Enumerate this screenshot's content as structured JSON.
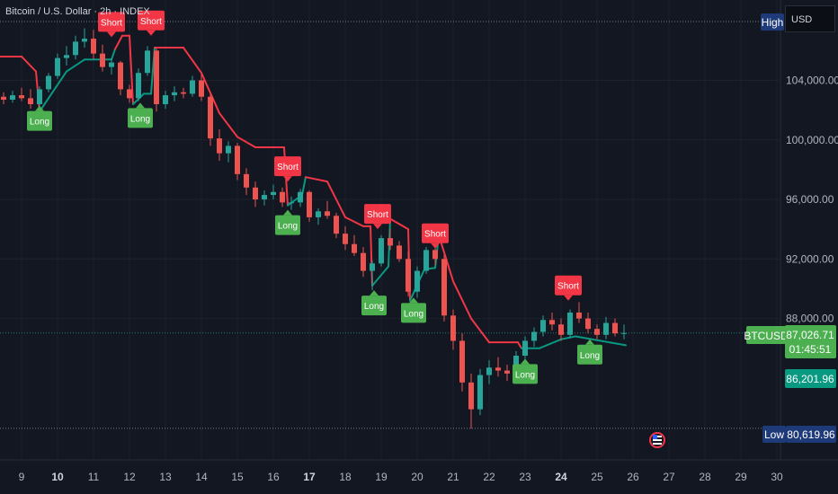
{
  "header": {
    "title": "Bitcoin / U.S. Dollar · 2h · INDEX",
    "currency": "USD"
  },
  "colors": {
    "bg": "#131722",
    "up": "#26a69a",
    "down": "#ef5350",
    "short": "#f23645",
    "long": "#4caf50",
    "stop_bear": "#f23645",
    "stop_bull": "#089981",
    "text": "#b2b5be"
  },
  "chart_data": {
    "type": "candlestick",
    "instrument": "BTCUSD",
    "y_axis": {
      "ticks": [
        "104,000.00",
        "100,000.00",
        "96,000.00",
        "92,000.00",
        "88,000.00"
      ],
      "tick_values": [
        104000,
        100000,
        96000,
        92000,
        88000
      ],
      "ylim": [
        78500,
        109400
      ]
    },
    "x_axis": {
      "ticks": [
        {
          "label": "9",
          "day": 9,
          "bold": false
        },
        {
          "label": "10",
          "day": 10,
          "bold": true
        },
        {
          "label": "11",
          "day": 11,
          "bold": false
        },
        {
          "label": "12",
          "day": 12,
          "bold": false
        },
        {
          "label": "13",
          "day": 13,
          "bold": false
        },
        {
          "label": "14",
          "day": 14,
          "bold": false
        },
        {
          "label": "15",
          "day": 15,
          "bold": false
        },
        {
          "label": "16",
          "day": 16,
          "bold": false
        },
        {
          "label": "17",
          "day": 17,
          "bold": true
        },
        {
          "label": "18",
          "day": 18,
          "bold": false
        },
        {
          "label": "19",
          "day": 19,
          "bold": false
        },
        {
          "label": "20",
          "day": 20,
          "bold": false
        },
        {
          "label": "21",
          "day": 21,
          "bold": false
        },
        {
          "label": "22",
          "day": 22,
          "bold": false
        },
        {
          "label": "23",
          "day": 23,
          "bold": false
        },
        {
          "label": "24",
          "day": 24,
          "bold": true
        },
        {
          "label": "25",
          "day": 25,
          "bold": false
        },
        {
          "label": "26",
          "day": 26,
          "bold": false
        },
        {
          "label": "27",
          "day": 27,
          "bold": false
        },
        {
          "label": "28",
          "day": 28,
          "bold": false
        },
        {
          "label": "29",
          "day": 29,
          "bold": false
        },
        {
          "label": "30",
          "day": 30,
          "bold": false
        }
      ],
      "xlim": [
        8.4,
        30.1
      ]
    },
    "high_line": {
      "label": "High"
    },
    "low_line": {
      "label": "Low",
      "price_label": "80,619.96",
      "value": 80619.96
    },
    "last_price": {
      "label": "BTCUSD",
      "price_label": "87,026.71",
      "value": 87026.71,
      "countdown": "01:45:51"
    },
    "stop_level": {
      "price_label": "86,201.96",
      "value": 86201.96
    },
    "candles": [
      [
        8.5,
        102900,
        103200,
        102400,
        102700
      ],
      [
        8.75,
        102700,
        103300,
        102500,
        103000
      ],
      [
        9.0,
        103000,
        103500,
        102600,
        102800
      ],
      [
        9.25,
        102800,
        103400,
        102100,
        102400
      ],
      [
        9.5,
        102400,
        103600,
        102300,
        103400
      ],
      [
        9.75,
        103400,
        104500,
        103200,
        104300
      ],
      [
        10.0,
        104300,
        105800,
        104100,
        105500
      ],
      [
        10.25,
        105500,
        106300,
        105000,
        105700
      ],
      [
        10.5,
        105700,
        107000,
        105400,
        106600
      ],
      [
        10.75,
        106600,
        107500,
        106200,
        106800
      ],
      [
        11.0,
        106800,
        107400,
        105400,
        105800
      ],
      [
        11.25,
        105800,
        106400,
        104600,
        104900
      ],
      [
        11.5,
        104900,
        105500,
        104400,
        105200
      ],
      [
        11.75,
        105200,
        105300,
        103000,
        103400
      ],
      [
        12.0,
        103400,
        103700,
        102500,
        102800
      ],
      [
        12.25,
        102800,
        104800,
        102600,
        104500
      ],
      [
        12.5,
        104500,
        106300,
        104300,
        106000
      ],
      [
        12.75,
        106000,
        106200,
        101900,
        102400
      ],
      [
        13.0,
        102400,
        103300,
        102100,
        103000
      ],
      [
        13.25,
        103000,
        103600,
        102600,
        103200
      ],
      [
        13.5,
        103200,
        103500,
        102800,
        103100
      ],
      [
        13.75,
        103100,
        104300,
        102900,
        104000
      ],
      [
        14.0,
        104000,
        104400,
        102600,
        102900
      ],
      [
        14.25,
        102900,
        103100,
        99600,
        100100
      ],
      [
        14.5,
        100100,
        100700,
        98600,
        99100
      ],
      [
        14.75,
        99100,
        99900,
        98500,
        99600
      ],
      [
        15.0,
        99600,
        99800,
        97300,
        97700
      ],
      [
        15.25,
        97700,
        98100,
        96300,
        96800
      ],
      [
        15.5,
        96800,
        97200,
        95500,
        96000
      ],
      [
        15.75,
        96000,
        96600,
        95600,
        96300
      ],
      [
        16.0,
        96300,
        97000,
        96000,
        96500
      ],
      [
        16.25,
        96500,
        96800,
        95500,
        95800
      ],
      [
        16.5,
        95800,
        96200,
        95300,
        95800
      ],
      [
        16.75,
        95800,
        96700,
        95500,
        96500
      ],
      [
        17.0,
        96500,
        96600,
        94500,
        94800
      ],
      [
        17.25,
        94800,
        95400,
        94300,
        95200
      ],
      [
        17.5,
        95200,
        95900,
        94700,
        94900
      ],
      [
        17.75,
        94900,
        95100,
        93400,
        93700
      ],
      [
        18.0,
        93700,
        94200,
        92600,
        93000
      ],
      [
        18.25,
        93000,
        93600,
        92200,
        92400
      ],
      [
        18.5,
        92400,
        92800,
        90800,
        91200
      ],
      [
        18.75,
        91200,
        91900,
        89900,
        91700
      ],
      [
        19.0,
        91700,
        93600,
        91500,
        93400
      ],
      [
        19.25,
        93400,
        94000,
        92600,
        92900
      ],
      [
        19.5,
        92900,
        93200,
        91800,
        92000
      ],
      [
        19.75,
        92000,
        92500,
        89500,
        89800
      ],
      [
        20.0,
        89800,
        91500,
        89400,
        91200
      ],
      [
        20.25,
        91200,
        92800,
        91000,
        92600
      ],
      [
        20.5,
        92600,
        92900,
        91600,
        92000
      ],
      [
        20.75,
        92000,
        92300,
        87800,
        88200
      ],
      [
        21.0,
        88200,
        88600,
        85900,
        86500
      ],
      [
        21.25,
        86500,
        87000,
        83100,
        83700
      ],
      [
        21.5,
        83700,
        84300,
        80600,
        81900
      ],
      [
        21.75,
        81900,
        84600,
        81500,
        84200
      ],
      [
        22.0,
        84200,
        85200,
        83600,
        84700
      ],
      [
        22.25,
        84700,
        85400,
        84100,
        84500
      ],
      [
        22.5,
        84500,
        84900,
        83800,
        84300
      ],
      [
        22.75,
        84300,
        85800,
        84100,
        85500
      ],
      [
        23.0,
        85500,
        86800,
        85300,
        86500
      ],
      [
        23.25,
        86500,
        87400,
        86100,
        87100
      ],
      [
        23.5,
        87100,
        88200,
        86800,
        87900
      ],
      [
        23.75,
        87900,
        88400,
        87200,
        87600
      ],
      [
        24.0,
        87600,
        88000,
        86500,
        86900
      ],
      [
        24.25,
        86900,
        88600,
        86700,
        88400
      ],
      [
        24.5,
        88400,
        89100,
        87700,
        88000
      ],
      [
        24.75,
        88000,
        88400,
        87000,
        87300
      ],
      [
        25.0,
        87300,
        87600,
        86600,
        86900
      ],
      [
        25.25,
        86900,
        88100,
        86600,
        87700
      ],
      [
        25.5,
        87700,
        88000,
        86800,
        87000
      ],
      [
        25.75,
        87000,
        87600,
        86600,
        87026.71
      ]
    ],
    "stop_line": [
      [
        8.4,
        105600,
        "bear"
      ],
      [
        9.0,
        105600,
        "bear"
      ],
      [
        9.4,
        104600,
        "bear"
      ],
      [
        9.5,
        101900,
        "bull"
      ],
      [
        9.75,
        102800,
        "bull"
      ],
      [
        10.25,
        104600,
        "bull"
      ],
      [
        10.75,
        105400,
        "bull"
      ],
      [
        11.5,
        105400,
        "bull"
      ],
      [
        11.6,
        106100,
        "bear"
      ],
      [
        11.8,
        107000,
        "bear"
      ],
      [
        12.0,
        107000,
        "bear"
      ],
      [
        12.1,
        102400,
        "bull"
      ],
      [
        12.4,
        103100,
        "bull"
      ],
      [
        12.6,
        103100,
        "bull"
      ],
      [
        12.7,
        106200,
        "bear"
      ],
      [
        13.5,
        106200,
        "bear"
      ],
      [
        14.0,
        104500,
        "bear"
      ],
      [
        14.5,
        101800,
        "bear"
      ],
      [
        15.0,
        100200,
        "bear"
      ],
      [
        15.5,
        99500,
        "bear"
      ],
      [
        16.3,
        99500,
        "bear"
      ],
      [
        16.4,
        95600,
        "bull"
      ],
      [
        16.8,
        96300,
        "bull"
      ],
      [
        16.9,
        97500,
        "bear"
      ],
      [
        17.5,
        97200,
        "bear"
      ],
      [
        18.0,
        94800,
        "bear"
      ],
      [
        18.5,
        94200,
        "bear"
      ],
      [
        18.7,
        94200,
        "bear"
      ],
      [
        18.75,
        90200,
        "bull"
      ],
      [
        19.2,
        91500,
        "bull"
      ],
      [
        19.25,
        94700,
        "bear"
      ],
      [
        19.75,
        94000,
        "bear"
      ],
      [
        19.8,
        89200,
        "bull"
      ],
      [
        20.2,
        91300,
        "bull"
      ],
      [
        20.5,
        91400,
        "bull"
      ],
      [
        20.6,
        93600,
        "bear"
      ],
      [
        21.0,
        90500,
        "bear"
      ],
      [
        21.5,
        88000,
        "bear"
      ],
      [
        22.0,
        86400,
        "bear"
      ],
      [
        22.8,
        86400,
        "bear"
      ],
      [
        22.9,
        86000,
        "bull"
      ],
      [
        23.4,
        86000,
        "bull"
      ],
      [
        24.0,
        86600,
        "bull"
      ],
      [
        24.4,
        86800,
        "bull"
      ],
      [
        25.8,
        86201.96,
        "bull"
      ]
    ],
    "signals": [
      {
        "type": "short",
        "label": "Short",
        "x": 11.5,
        "y": 106900
      },
      {
        "type": "short",
        "label": "Short",
        "x": 12.6,
        "y": 107000
      },
      {
        "type": "long",
        "label": "Long",
        "x": 9.5,
        "y": 102300
      },
      {
        "type": "long",
        "label": "Long",
        "x": 12.3,
        "y": 102500
      },
      {
        "type": "short",
        "label": "Short",
        "x": 16.4,
        "y": 97200
      },
      {
        "type": "long",
        "label": "Long",
        "x": 16.4,
        "y": 95300
      },
      {
        "type": "short",
        "label": "Short",
        "x": 18.9,
        "y": 94000
      },
      {
        "type": "long",
        "label": "Long",
        "x": 18.8,
        "y": 89900
      },
      {
        "type": "short",
        "label": "Short",
        "x": 20.5,
        "y": 92700
      },
      {
        "type": "long",
        "label": "Long",
        "x": 19.9,
        "y": 89400
      },
      {
        "type": "short",
        "label": "Short",
        "x": 24.2,
        "y": 89200
      },
      {
        "type": "long",
        "label": "Long",
        "x": 23.0,
        "y": 85300
      },
      {
        "type": "long",
        "label": "Long",
        "x": 24.8,
        "y": 86600
      }
    ]
  }
}
